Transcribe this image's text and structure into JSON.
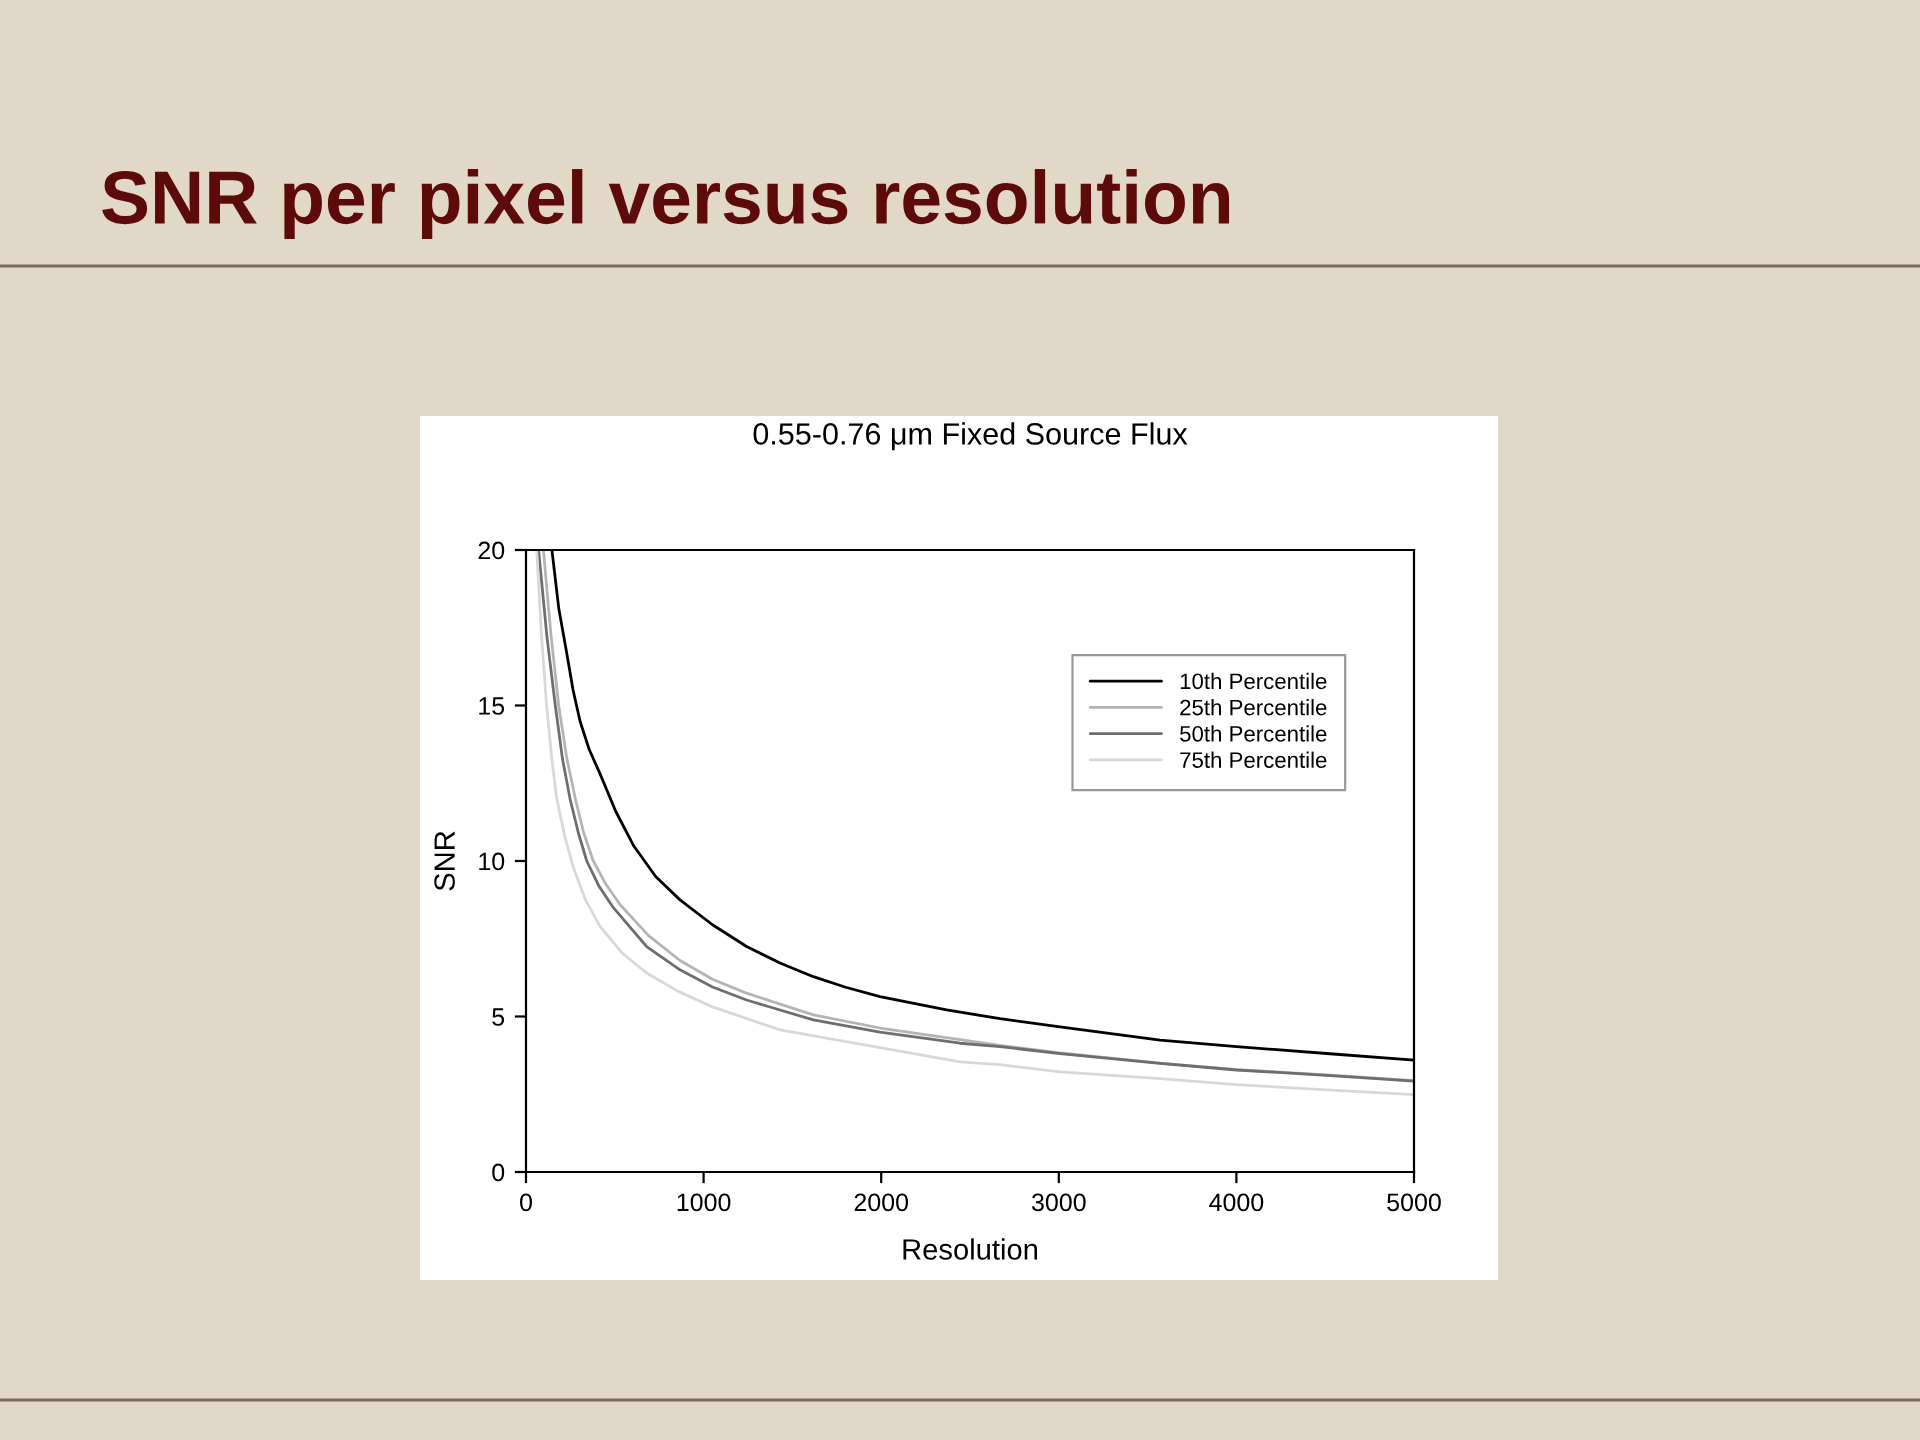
{
  "chart_data": {
    "type": "line",
    "title": "SNR per pixel versus resolution",
    "subtitle": "0.55-0.76 μm Fixed Source Flux",
    "xlabel": "Resolution",
    "ylabel": "SNR",
    "xlim": [
      0,
      5000
    ],
    "ylim": [
      0,
      20
    ],
    "xticks": [
      0,
      1000,
      2000,
      3000,
      4000,
      5000
    ],
    "yticks": [
      0,
      5,
      10,
      15,
      20
    ],
    "grid": false,
    "legend": "top right",
    "series": [
      {
        "name": "10th Percentile",
        "color": "#000000",
        "x": [
          146,
          185,
          229,
          265,
          304,
          355,
          417,
          505,
          605,
          730,
          867,
          1050,
          1242,
          1430,
          1618,
          1800,
          1993,
          2368,
          2669,
          3007,
          3570,
          4001,
          4508,
          5000
        ],
        "values": [
          20,
          18.1,
          16.7,
          15.5,
          14.5,
          13.6,
          12.8,
          11.6,
          10.5,
          9.5,
          8.75,
          7.95,
          7.25,
          6.72,
          6.28,
          5.94,
          5.64,
          5.21,
          4.93,
          4.67,
          4.24,
          4.03,
          3.81,
          3.6
        ]
      },
      {
        "name": "25th Percentile",
        "color": "#b4b4b4",
        "x": [
          98,
          140,
          184,
          230,
          278,
          325,
          379,
          450,
          529,
          690,
          867,
          1050,
          1242,
          1618,
          1993,
          2669,
          3007,
          3570,
          4001,
          4508,
          5000
        ],
        "values": [
          20,
          17.3,
          15,
          13.3,
          12,
          10.9,
          10,
          9.25,
          8.6,
          7.6,
          6.8,
          6.2,
          5.75,
          5.05,
          4.63,
          4.07,
          3.83,
          3.5,
          3.29,
          3.12,
          2.94
        ]
      },
      {
        "name": "50th Percentile",
        "color": "#6e6e6e",
        "x": [
          71,
          118,
          165,
          205,
          248,
          295,
          342,
          410,
          492,
          679,
          867,
          1050,
          1242,
          1618,
          1993,
          2444,
          2669,
          3007,
          3570,
          4001,
          4508,
          5000
        ],
        "values": [
          20,
          17.2,
          15,
          13.3,
          12,
          10.9,
          10,
          9.2,
          8.5,
          7.25,
          6.5,
          5.95,
          5.53,
          4.89,
          4.5,
          4.14,
          4.03,
          3.81,
          3.49,
          3.28,
          3.11,
          2.92
        ]
      },
      {
        "name": "75th Percentile",
        "color": "#d8d8d8",
        "x": [
          60,
          88,
          116,
          145,
          173,
          218,
          266,
          335,
          417,
          540,
          679,
          860,
          1055,
          1430,
          1993,
          2444,
          2669,
          3007,
          3570,
          4001,
          4508,
          5000
        ],
        "values": [
          20,
          17.2,
          15,
          13.3,
          12,
          10.8,
          9.8,
          8.75,
          7.9,
          7.05,
          6.4,
          5.8,
          5.3,
          4.57,
          4.0,
          3.54,
          3.45,
          3.22,
          3.0,
          2.81,
          2.64,
          2.49
        ]
      }
    ]
  }
}
